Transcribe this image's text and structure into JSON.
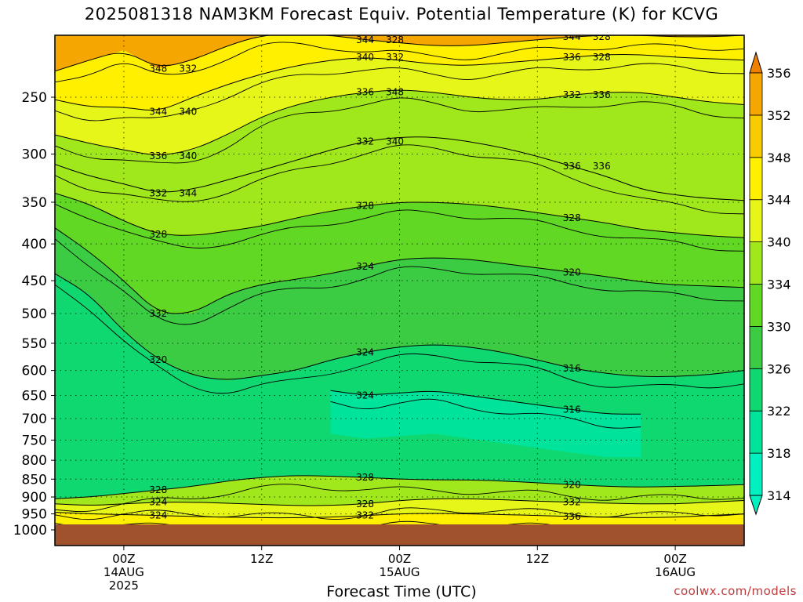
{
  "chart_data": {
    "type": "heatmap",
    "title": "2025081318 NAM3KM Forecast Equiv. Potential Temperature (K) for KCVG",
    "xlabel": "Forecast Time (UTC)",
    "ylabel": "",
    "y_scale": "log",
    "y_inverted": true,
    "y_ticks": [
      250,
      300,
      350,
      400,
      450,
      500,
      550,
      600,
      650,
      700,
      750,
      800,
      850,
      900,
      950,
      1000
    ],
    "ylim": [
      1000,
      200
    ],
    "x_ticks": [
      {
        "label": "00Z",
        "sub": "14AUG",
        "sub2": "2025",
        "t": 6
      },
      {
        "label": "12Z",
        "sub": "",
        "sub2": "",
        "t": 18
      },
      {
        "label": "00Z",
        "sub": "15AUG",
        "sub2": "",
        "t": 30
      },
      {
        "label": "12Z",
        "sub": "",
        "sub2": "",
        "t": 42
      },
      {
        "label": "00Z",
        "sub": "16AUG",
        "sub2": "",
        "t": 54
      }
    ],
    "xlim": [
      0,
      60
    ],
    "colorbar": {
      "levels": [
        314,
        318,
        322,
        326,
        330,
        334,
        340,
        344,
        348,
        352,
        356
      ],
      "colors": [
        "#00f0c0",
        "#00e39a",
        "#10d870",
        "#3ccc44",
        "#60d824",
        "#a0e81c",
        "#e6f618",
        "#fff000",
        "#f8cc00",
        "#f6a600",
        "#f08000"
      ],
      "extend": "both"
    },
    "contour_interval": 4,
    "surface_color": "#a0522d",
    "grid": "dotted",
    "contour_labels": [
      "348",
      "344",
      "344",
      "344",
      "340",
      "336",
      "336",
      "336",
      "332",
      "332",
      "332",
      "336",
      "328",
      "328",
      "328",
      "332",
      "324",
      "320",
      "320",
      "324",
      "316",
      "324",
      "316",
      "328",
      "328",
      "320",
      "324",
      "328",
      "332",
      "324",
      "332",
      "336",
      "332",
      "328",
      "328",
      "340",
      "332",
      "328",
      "340",
      "348",
      "336",
      "344",
      "340",
      "336"
    ],
    "isotherms": [
      {
        "level": 348,
        "p": [
          230,
          222,
          215,
          228,
          222,
          212,
          205,
          204,
          205,
          208,
          210,
          212,
          212,
          210,
          208,
          206,
          205,
          205,
          206,
          206,
          205
        ]
      },
      {
        "level": 344,
        "p": [
          252,
          258,
          258,
          262,
          250,
          240,
          232,
          226,
          222,
          220,
          222,
          225,
          226,
          224,
          222,
          220,
          218,
          218,
          220,
          221,
          222
        ]
      },
      {
        "level": 340,
        "p": [
          282,
          290,
          296,
          302,
          296,
          282,
          266,
          256,
          250,
          246,
          244,
          246,
          250,
          252,
          252,
          248,
          246,
          246,
          250,
          254,
          256
        ]
      },
      {
        "level": 336,
        "p": [
          310,
          322,
          330,
          340,
          336,
          326,
          316,
          306,
          296,
          288,
          284,
          284,
          288,
          294,
          302,
          312,
          322,
          336,
          342,
          346,
          348
        ]
      },
      {
        "level": 332,
        "p": [
          340,
          352,
          372,
          388,
          390,
          384,
          378,
          368,
          360,
          354,
          350,
          350,
          352,
          356,
          362,
          368,
          374,
          382,
          386,
          390,
          392
        ]
      },
      {
        "level": 328,
        "p": [
          380,
          410,
          450,
          500,
          500,
          470,
          455,
          448,
          440,
          430,
          420,
          418,
          420,
          426,
          432,
          438,
          444,
          452,
          456,
          458,
          460
        ]
      },
      {
        "level": 324,
        "p": [
          440,
          470,
          530,
          580,
          610,
          620,
          610,
          600,
          580,
          566,
          556,
          552,
          556,
          566,
          580,
          596,
          606,
          612,
          612,
          608,
          600
        ]
      },
      {
        "level": 320,
        "p": [
          null,
          null,
          null,
          null,
          null,
          null,
          null,
          null,
          640,
          650,
          645,
          640,
          650,
          660,
          670,
          680,
          690,
          690,
          null,
          null,
          null
        ]
      }
    ],
    "lowlevel": [
      {
        "level": 336,
        "p": [
          905,
          900,
          890,
          880,
          870,
          855,
          845,
          840,
          842,
          845,
          850,
          852,
          852,
          855,
          860,
          865,
          870,
          872,
          870,
          868,
          865
        ]
      },
      {
        "level": 340,
        "p": [
          920,
          925,
          920,
          915,
          915,
          918,
          922,
          925,
          925,
          920,
          910,
          905,
          905,
          908,
          912,
          915,
          918,
          920,
          920,
          915,
          910
        ]
      },
      {
        "level": 344,
        "p": [
          945,
          950,
          952,
          955,
          958,
          960,
          962,
          962,
          960,
          955,
          950,
          948,
          950,
          952,
          955,
          958,
          960,
          962,
          960,
          955,
          950
        ]
      }
    ]
  },
  "credit": "coolwx.com/models"
}
